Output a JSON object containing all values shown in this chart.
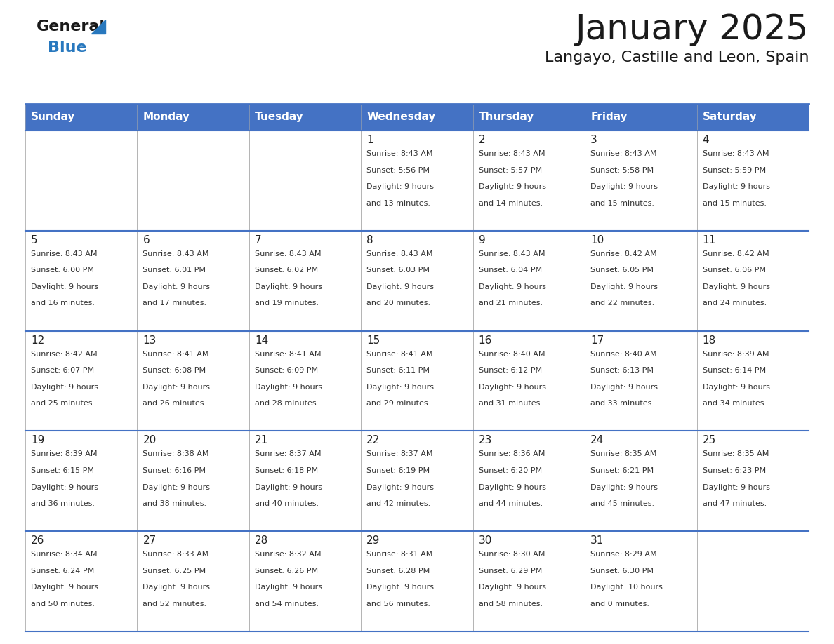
{
  "title": "January 2025",
  "subtitle": "Langayo, Castille and Leon, Spain",
  "header_color": "#4472C4",
  "header_text_color": "#FFFFFF",
  "border_color": "#4472C4",
  "cell_border_color": "#AAAAAA",
  "text_color": "#333333",
  "day_number_color": "#222222",
  "bg_color": "#FFFFFF",
  "days_of_week": [
    "Sunday",
    "Monday",
    "Tuesday",
    "Wednesday",
    "Thursday",
    "Friday",
    "Saturday"
  ],
  "weeks": [
    [
      {
        "day": "",
        "sunrise": "",
        "sunset": "",
        "daylight": ""
      },
      {
        "day": "",
        "sunrise": "",
        "sunset": "",
        "daylight": ""
      },
      {
        "day": "",
        "sunrise": "",
        "sunset": "",
        "daylight": ""
      },
      {
        "day": "1",
        "sunrise": "Sunrise: 8:43 AM",
        "sunset": "Sunset: 5:56 PM",
        "daylight": "Daylight: 9 hours\nand 13 minutes."
      },
      {
        "day": "2",
        "sunrise": "Sunrise: 8:43 AM",
        "sunset": "Sunset: 5:57 PM",
        "daylight": "Daylight: 9 hours\nand 14 minutes."
      },
      {
        "day": "3",
        "sunrise": "Sunrise: 8:43 AM",
        "sunset": "Sunset: 5:58 PM",
        "daylight": "Daylight: 9 hours\nand 15 minutes."
      },
      {
        "day": "4",
        "sunrise": "Sunrise: 8:43 AM",
        "sunset": "Sunset: 5:59 PM",
        "daylight": "Daylight: 9 hours\nand 15 minutes."
      }
    ],
    [
      {
        "day": "5",
        "sunrise": "Sunrise: 8:43 AM",
        "sunset": "Sunset: 6:00 PM",
        "daylight": "Daylight: 9 hours\nand 16 minutes."
      },
      {
        "day": "6",
        "sunrise": "Sunrise: 8:43 AM",
        "sunset": "Sunset: 6:01 PM",
        "daylight": "Daylight: 9 hours\nand 17 minutes."
      },
      {
        "day": "7",
        "sunrise": "Sunrise: 8:43 AM",
        "sunset": "Sunset: 6:02 PM",
        "daylight": "Daylight: 9 hours\nand 19 minutes."
      },
      {
        "day": "8",
        "sunrise": "Sunrise: 8:43 AM",
        "sunset": "Sunset: 6:03 PM",
        "daylight": "Daylight: 9 hours\nand 20 minutes."
      },
      {
        "day": "9",
        "sunrise": "Sunrise: 8:43 AM",
        "sunset": "Sunset: 6:04 PM",
        "daylight": "Daylight: 9 hours\nand 21 minutes."
      },
      {
        "day": "10",
        "sunrise": "Sunrise: 8:42 AM",
        "sunset": "Sunset: 6:05 PM",
        "daylight": "Daylight: 9 hours\nand 22 minutes."
      },
      {
        "day": "11",
        "sunrise": "Sunrise: 8:42 AM",
        "sunset": "Sunset: 6:06 PM",
        "daylight": "Daylight: 9 hours\nand 24 minutes."
      }
    ],
    [
      {
        "day": "12",
        "sunrise": "Sunrise: 8:42 AM",
        "sunset": "Sunset: 6:07 PM",
        "daylight": "Daylight: 9 hours\nand 25 minutes."
      },
      {
        "day": "13",
        "sunrise": "Sunrise: 8:41 AM",
        "sunset": "Sunset: 6:08 PM",
        "daylight": "Daylight: 9 hours\nand 26 minutes."
      },
      {
        "day": "14",
        "sunrise": "Sunrise: 8:41 AM",
        "sunset": "Sunset: 6:09 PM",
        "daylight": "Daylight: 9 hours\nand 28 minutes."
      },
      {
        "day": "15",
        "sunrise": "Sunrise: 8:41 AM",
        "sunset": "Sunset: 6:11 PM",
        "daylight": "Daylight: 9 hours\nand 29 minutes."
      },
      {
        "day": "16",
        "sunrise": "Sunrise: 8:40 AM",
        "sunset": "Sunset: 6:12 PM",
        "daylight": "Daylight: 9 hours\nand 31 minutes."
      },
      {
        "day": "17",
        "sunrise": "Sunrise: 8:40 AM",
        "sunset": "Sunset: 6:13 PM",
        "daylight": "Daylight: 9 hours\nand 33 minutes."
      },
      {
        "day": "18",
        "sunrise": "Sunrise: 8:39 AM",
        "sunset": "Sunset: 6:14 PM",
        "daylight": "Daylight: 9 hours\nand 34 minutes."
      }
    ],
    [
      {
        "day": "19",
        "sunrise": "Sunrise: 8:39 AM",
        "sunset": "Sunset: 6:15 PM",
        "daylight": "Daylight: 9 hours\nand 36 minutes."
      },
      {
        "day": "20",
        "sunrise": "Sunrise: 8:38 AM",
        "sunset": "Sunset: 6:16 PM",
        "daylight": "Daylight: 9 hours\nand 38 minutes."
      },
      {
        "day": "21",
        "sunrise": "Sunrise: 8:37 AM",
        "sunset": "Sunset: 6:18 PM",
        "daylight": "Daylight: 9 hours\nand 40 minutes."
      },
      {
        "day": "22",
        "sunrise": "Sunrise: 8:37 AM",
        "sunset": "Sunset: 6:19 PM",
        "daylight": "Daylight: 9 hours\nand 42 minutes."
      },
      {
        "day": "23",
        "sunrise": "Sunrise: 8:36 AM",
        "sunset": "Sunset: 6:20 PM",
        "daylight": "Daylight: 9 hours\nand 44 minutes."
      },
      {
        "day": "24",
        "sunrise": "Sunrise: 8:35 AM",
        "sunset": "Sunset: 6:21 PM",
        "daylight": "Daylight: 9 hours\nand 45 minutes."
      },
      {
        "day": "25",
        "sunrise": "Sunrise: 8:35 AM",
        "sunset": "Sunset: 6:23 PM",
        "daylight": "Daylight: 9 hours\nand 47 minutes."
      }
    ],
    [
      {
        "day": "26",
        "sunrise": "Sunrise: 8:34 AM",
        "sunset": "Sunset: 6:24 PM",
        "daylight": "Daylight: 9 hours\nand 50 minutes."
      },
      {
        "day": "27",
        "sunrise": "Sunrise: 8:33 AM",
        "sunset": "Sunset: 6:25 PM",
        "daylight": "Daylight: 9 hours\nand 52 minutes."
      },
      {
        "day": "28",
        "sunrise": "Sunrise: 8:32 AM",
        "sunset": "Sunset: 6:26 PM",
        "daylight": "Daylight: 9 hours\nand 54 minutes."
      },
      {
        "day": "29",
        "sunrise": "Sunrise: 8:31 AM",
        "sunset": "Sunset: 6:28 PM",
        "daylight": "Daylight: 9 hours\nand 56 minutes."
      },
      {
        "day": "30",
        "sunrise": "Sunrise: 8:30 AM",
        "sunset": "Sunset: 6:29 PM",
        "daylight": "Daylight: 9 hours\nand 58 minutes."
      },
      {
        "day": "31",
        "sunrise": "Sunrise: 8:29 AM",
        "sunset": "Sunset: 6:30 PM",
        "daylight": "Daylight: 10 hours\nand 0 minutes."
      },
      {
        "day": "",
        "sunrise": "",
        "sunset": "",
        "daylight": ""
      }
    ]
  ],
  "logo_general_color": "#1a1a1a",
  "logo_blue_color": "#2878BE",
  "figsize": [
    11.88,
    9.18
  ],
  "dpi": 100
}
